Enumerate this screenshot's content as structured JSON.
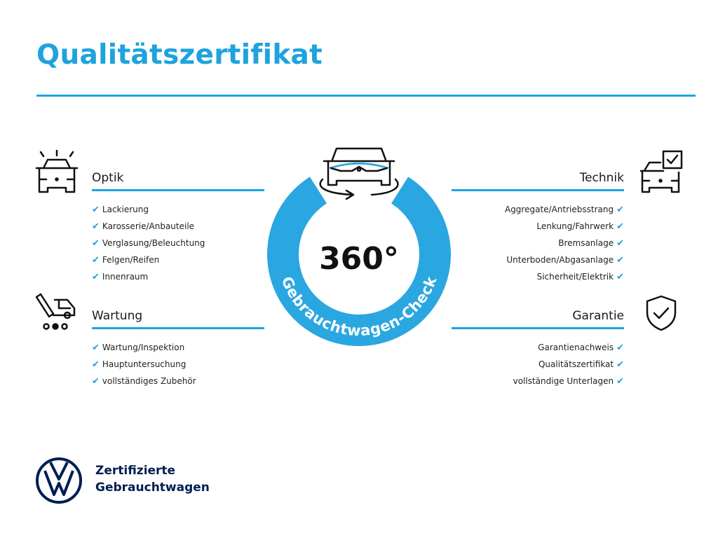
{
  "title": "Qualitätszertifikat",
  "center": {
    "big_text": "360°",
    "ring_text": "Gebrauchtwagen-Check"
  },
  "sections": {
    "optik": {
      "heading": "Optik",
      "icon": "car-lights-icon",
      "items": [
        "Lackierung",
        "Karosserie/Anbauteile",
        "Verglasung/Beleuchtung",
        "Felgen/Reifen",
        "Innenraum"
      ]
    },
    "wartung": {
      "heading": "Wartung",
      "icon": "car-service-icon",
      "items": [
        "Wartung/Inspektion",
        "Hauptuntersuchung",
        "vollständiges Zubehör"
      ]
    },
    "technik": {
      "heading": "Technik",
      "icon": "car-checklist-icon",
      "items": [
        "Aggregate/Antriebsstrang",
        "Lenkung/Fahrwerk",
        "Bremsanlage",
        "Unterboden/Abgasanlage",
        "Sicherheit/Elektrik"
      ]
    },
    "garantie": {
      "heading": "Garantie",
      "icon": "shield-check-icon",
      "items": [
        "Garantienachweis",
        "Qualitätszertifikat",
        "vollständige Unterlagen"
      ]
    }
  },
  "check_symbol": "✔",
  "brand": {
    "line1": "Zertifizierte",
    "line2": "Gebrauchtwagen",
    "logo": "vw-logo"
  },
  "colors": {
    "accent": "#1ea3de",
    "navy": "#001e50",
    "text": "#1a1a1a"
  }
}
